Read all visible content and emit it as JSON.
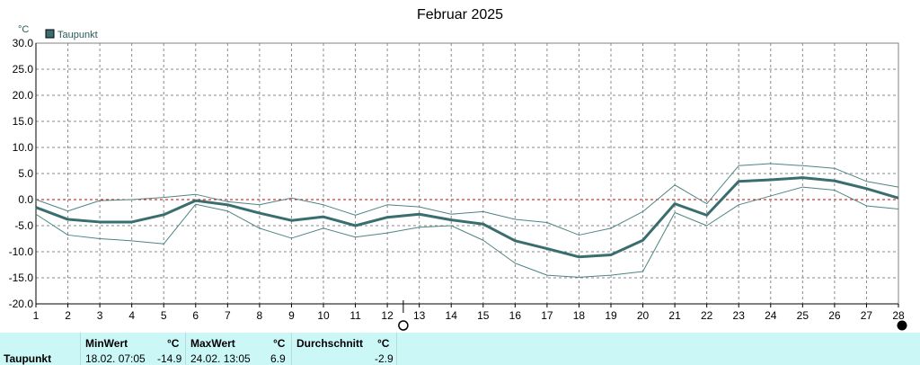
{
  "chart_data": {
    "type": "line",
    "title": "Februar 2025",
    "unit": "°C",
    "legend": "Taupunkt",
    "legend_color": "#3a6e6e",
    "ylim": [
      -20,
      30
    ],
    "yticks": [
      "30.0",
      "25.0",
      "20.0",
      "15.0",
      "10.0",
      "5.0",
      "0.0",
      "-5.0",
      "-10.0",
      "-15.0",
      "-20.0"
    ],
    "ytick_values": [
      30,
      25,
      20,
      15,
      10,
      5,
      0,
      -5,
      -10,
      -15,
      -20
    ],
    "x": [
      1,
      2,
      3,
      4,
      5,
      6,
      7,
      8,
      9,
      10,
      11,
      12,
      13,
      14,
      15,
      16,
      17,
      18,
      19,
      20,
      21,
      22,
      23,
      24,
      25,
      26,
      27,
      28
    ],
    "xticks": [
      "1",
      "2",
      "3",
      "4",
      "5",
      "6",
      "7",
      "8",
      "9",
      "10",
      "11",
      "12",
      "13",
      "14",
      "15",
      "16",
      "17",
      "18",
      "19",
      "20",
      "21",
      "22",
      "23",
      "24",
      "25",
      "26",
      "27",
      "28"
    ],
    "zero_line_color": "#cc0000",
    "series": [
      {
        "role": "mean",
        "values": [
          -1.5,
          -3.8,
          -4.3,
          -4.3,
          -2.9,
          -0.2,
          -1.0,
          -2.6,
          -4.0,
          -3.3,
          -5.0,
          -3.4,
          -2.8,
          -3.9,
          -4.7,
          -7.9,
          -9.4,
          -11.0,
          -10.6,
          -7.8,
          -0.8,
          -3.0,
          3.5,
          3.8,
          4.2,
          3.6,
          2.1,
          0.3
        ]
      },
      {
        "role": "max",
        "values": [
          0.0,
          -2.2,
          -0.2,
          0.0,
          0.4,
          1.0,
          -0.4,
          -1.0,
          0.3,
          -1.0,
          -3.0,
          -1.0,
          -1.4,
          -2.8,
          -2.3,
          -3.8,
          -4.4,
          -6.8,
          -5.5,
          -2.3,
          2.8,
          -0.8,
          6.5,
          6.9,
          6.5,
          6.0,
          3.5,
          2.4
        ]
      },
      {
        "role": "min",
        "values": [
          -2.8,
          -6.8,
          -7.5,
          -7.9,
          -8.5,
          -0.9,
          -2.2,
          -5.5,
          -7.4,
          -5.5,
          -7.2,
          -6.4,
          -5.3,
          -5.0,
          -7.8,
          -12.2,
          -14.5,
          -14.9,
          -14.5,
          -13.8,
          -2.5,
          -5.0,
          -1.0,
          0.7,
          2.4,
          1.8,
          -1.2,
          -1.8
        ]
      }
    ]
  },
  "moon_new_day": 12.5,
  "moon_full_day": 28,
  "stats": {
    "row_label": "Taupunkt",
    "min": {
      "label": "MinWert",
      "unit": "°C",
      "datetime": "18.02.  07:05",
      "value": "-14.9"
    },
    "max": {
      "label": "MaxWert",
      "unit": "°C",
      "datetime": "24.02.  13:05",
      "value": "6.9"
    },
    "avg": {
      "label": "Durchschnitt",
      "unit": "°C",
      "value": "-2.9"
    }
  }
}
